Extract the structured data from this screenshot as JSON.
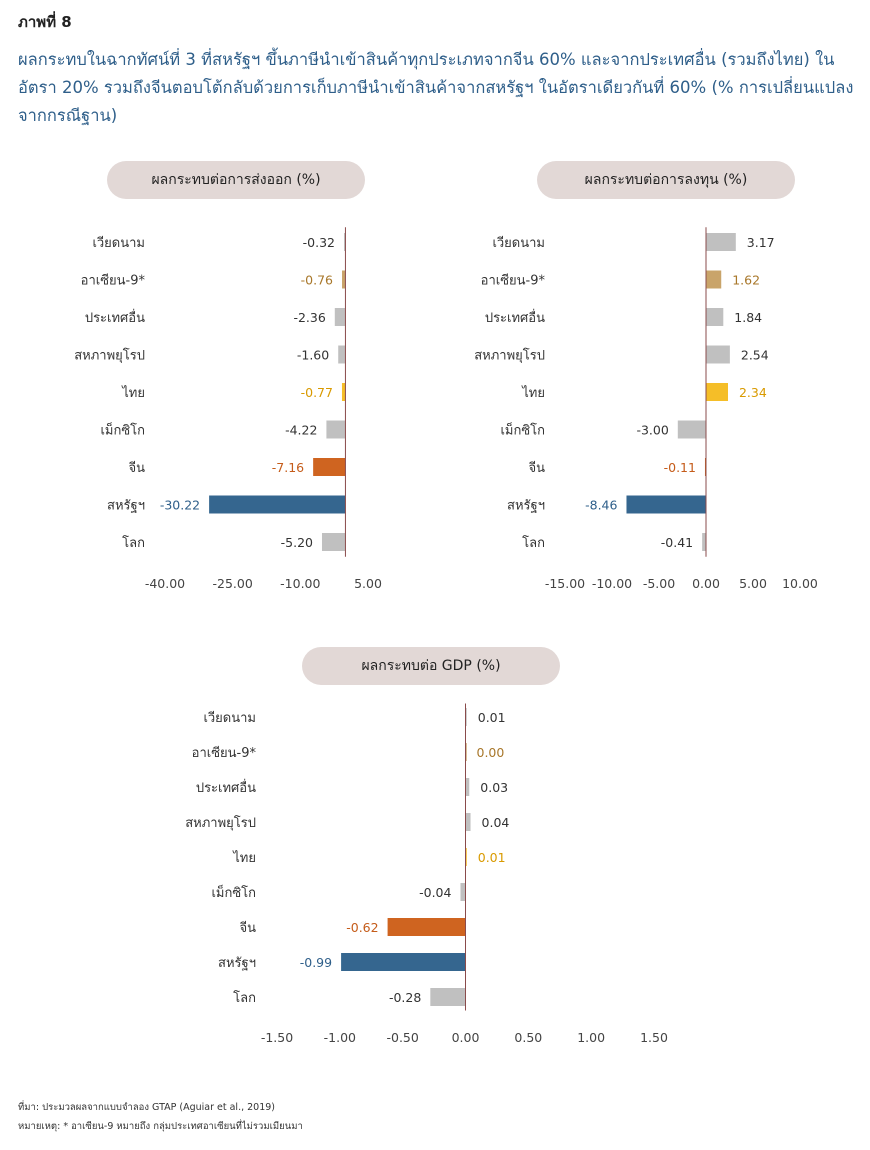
{
  "figure_label": "ภาพที่ 8",
  "headline": "ผลกระทบในฉากทัศน์ที่ 3 ที่สหรัฐฯ ขึ้นภาษีนำเข้าสินค้าทุกประเภทจากจีน 60% และจากประเทศอื่น (รวมถึงไทย) ในอัตรา 20% รวมถึงจีนตอบโต้กลับด้วยการเก็บภาษีนำเข้าสินค้าจากสหรัฐฯ ในอัตราเดียวกันที่ 60% (% การเปลี่ยนแปลงจากกรณีฐาน)",
  "source": "ที่มา: ประมวลผลจากแบบจำลอง GTAP (Aguiar et al., 2019)",
  "note": "หมายเหตุ: * อาเซียน-9 หมายถึง กลุ่มประเทศอาเซียนที่ไม่รวมเมียนมา",
  "colors": {
    "gray": "#c0c0c0",
    "asean": "#c9a46a",
    "thai": "#f5be28",
    "china": "#cf6420",
    "us": "#35668f",
    "label_gray": "#333333",
    "label_asean": "#a8772a",
    "label_thai": "#d99a00",
    "label_china": "#c55c1a",
    "label_us": "#2f5f8a"
  },
  "chart_data": [
    {
      "type": "bar",
      "orientation": "horizontal",
      "title": "ผลกระทบต่อการส่งออก (%)",
      "categories": [
        "เวียดนาม",
        "อาเซียน-9*",
        "ประเทศอื่น",
        "สหภาพยุโรป",
        "ไทย",
        "เม็กซิโก",
        "จีน",
        "สหรัฐฯ",
        "โลก"
      ],
      "values": [
        -0.32,
        -0.76,
        -2.36,
        -1.6,
        -0.77,
        -4.22,
        -7.16,
        -30.22,
        -5.2
      ],
      "value_labels": [
        "-0.32",
        "-0.76",
        "-2.36",
        "-1.60",
        "-0.77",
        "-4.22",
        "-7.16",
        "-30.22",
        "-5.20"
      ],
      "xlim": [
        -40,
        5
      ],
      "ticks": [
        -40,
        -25,
        -10,
        5
      ],
      "tick_labels": [
        "-40.00",
        "-25.00",
        "-10.00",
        "5.00"
      ],
      "zero_line_at": 0
    },
    {
      "type": "bar",
      "orientation": "horizontal",
      "title": "ผลกระทบต่อการลงทุน (%)",
      "categories": [
        "เวียดนาม",
        "อาเซียน-9*",
        "ประเทศอื่น",
        "สหภาพยุโรป",
        "ไทย",
        "เม็กซิโก",
        "จีน",
        "สหรัฐฯ",
        "โลก"
      ],
      "values": [
        3.17,
        1.62,
        1.84,
        2.54,
        2.34,
        -3.0,
        -0.11,
        -8.46,
        -0.41
      ],
      "value_labels": [
        "3.17",
        "1.62",
        "1.84",
        "2.54",
        "2.34",
        "-3.00",
        "-0.11",
        "-8.46",
        "-0.41"
      ],
      "xlim": [
        -15,
        10
      ],
      "ticks": [
        -15,
        -10,
        -5,
        0,
        5,
        10
      ],
      "tick_labels": [
        "-15.00",
        "-10.00",
        "-5.00",
        "0.00",
        "5.00",
        "10.00"
      ],
      "zero_line_at": 0
    },
    {
      "type": "bar",
      "orientation": "horizontal",
      "title": "ผลกระทบต่อ GDP (%)",
      "categories": [
        "เวียดนาม",
        "อาเซียน-9*",
        "ประเทศอื่น",
        "สหภาพยุโรป",
        "ไทย",
        "เม็กซิโก",
        "จีน",
        "สหรัฐฯ",
        "โลก"
      ],
      "values": [
        0.01,
        0.0,
        0.03,
        0.04,
        0.01,
        -0.04,
        -0.62,
        -0.99,
        -0.28
      ],
      "value_labels": [
        "0.01",
        "0.00",
        "0.03",
        "0.04",
        "0.01",
        "-0.04",
        "-0.62",
        "-0.99",
        "-0.28"
      ],
      "xlim": [
        -1.5,
        1.5
      ],
      "ticks": [
        -1.5,
        -1.0,
        -0.5,
        0,
        0.5,
        1.0,
        1.5
      ],
      "tick_labels": [
        "-1.50",
        "-1.00",
        "-0.50",
        "0.00",
        "0.50",
        "1.00",
        "1.50"
      ],
      "zero_line_at": 0
    }
  ]
}
